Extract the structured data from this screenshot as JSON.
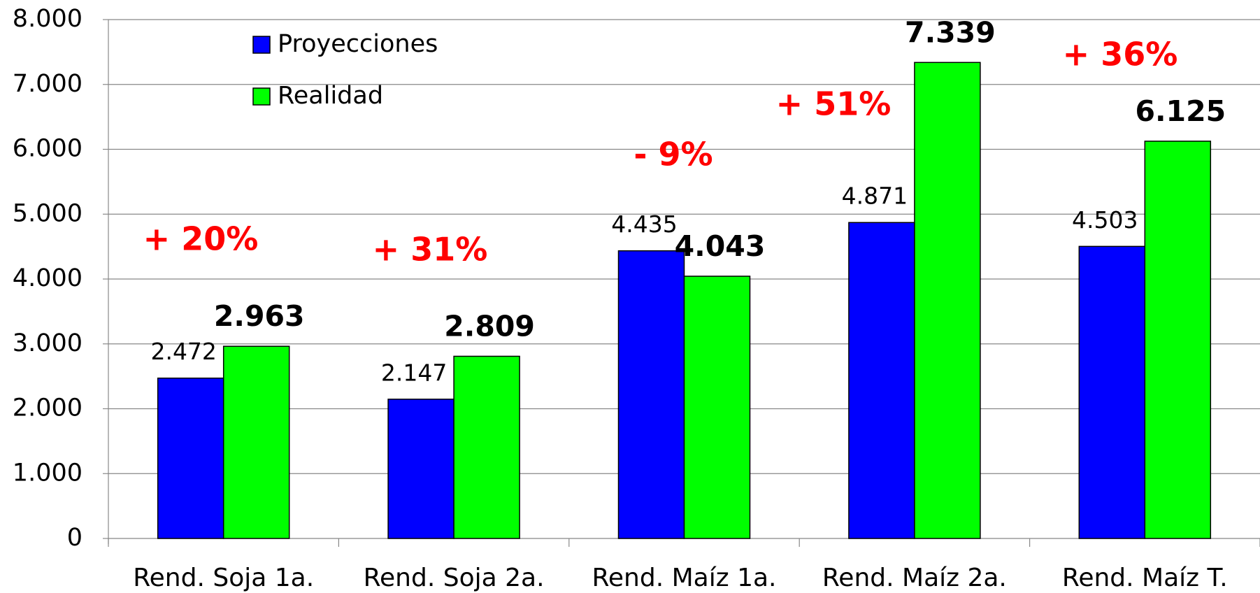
{
  "chart_data": {
    "type": "bar",
    "categories": [
      "Rend. Soja 1a.",
      "Rend. Soja 2a.",
      "Rend. Maíz 1a.",
      "Rend. Maíz 2a.",
      "Rend. Maíz T."
    ],
    "series": [
      {
        "name": "Proyecciones",
        "color": "#0000ff",
        "values": [
          2472,
          2147,
          4435,
          4871,
          4503
        ],
        "value_labels": [
          "2.472",
          "2.147",
          "4.435",
          "4.871",
          "4.503"
        ]
      },
      {
        "name": "Realidad",
        "color": "#00ff00",
        "values": [
          2963,
          2809,
          4043,
          7339,
          6125
        ],
        "value_labels": [
          "2.963",
          "2.809",
          "4.043",
          "7.339",
          "6.125"
        ]
      }
    ],
    "annotations": [
      "+ 20%",
      "+ 31%",
      "- 9%",
      "+ 51%",
      "+ 36%"
    ],
    "ylim": [
      0,
      8000
    ],
    "yticks": [
      0,
      {
        "value": 1000,
        "label": "1.000"
      },
      {
        "value": 2000,
        "label": "2.000"
      },
      {
        "value": 3000,
        "label": "3.000"
      },
      {
        "value": 4000,
        "label": "4.000"
      },
      {
        "value": 5000,
        "label": "5.000"
      },
      {
        "value": 6000,
        "label": "6.000"
      },
      {
        "value": 7000,
        "label": "7.000"
      },
      {
        "value": 8000,
        "label": "8.000"
      }
    ],
    "grid": true,
    "legend": "top-left"
  }
}
